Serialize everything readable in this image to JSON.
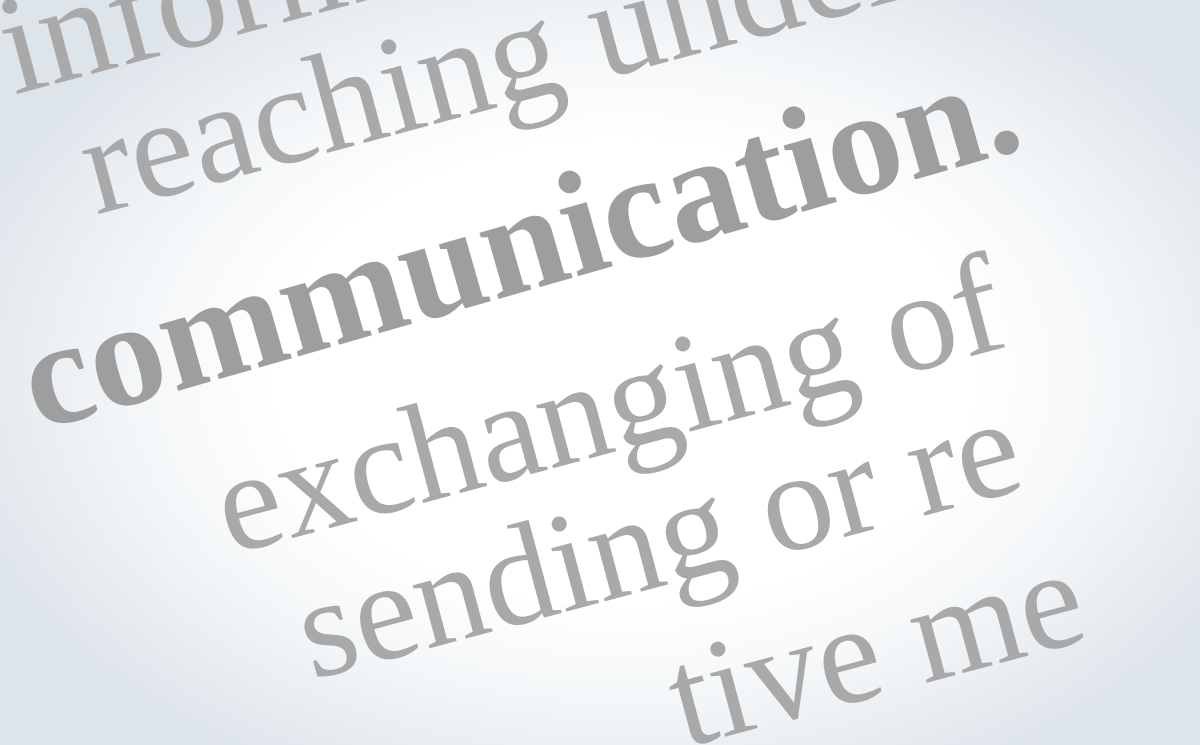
{
  "lines": [
    "informati",
    "reaching unders",
    "communication.",
    "exchanging of",
    "sending or re",
    "tive me"
  ],
  "colors": {
    "text": "#a9a9a9",
    "background": "#ffffff",
    "edge": "#dde4ea"
  }
}
